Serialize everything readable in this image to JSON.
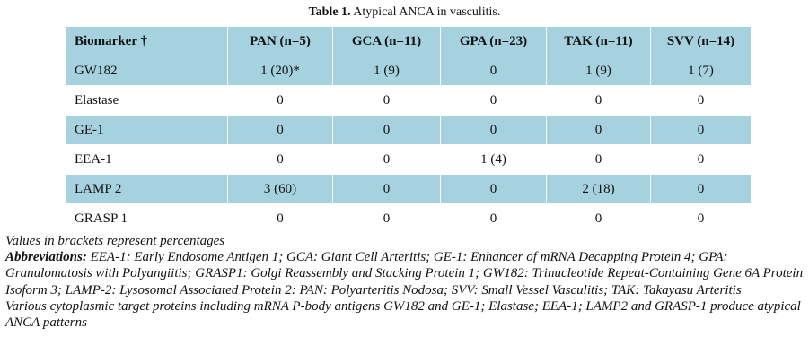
{
  "caption": {
    "label": "Table 1.",
    "text": " Atypical ANCA in vasculitis."
  },
  "table": {
    "headers": [
      "Biomarker †",
      "PAN (n=5)",
      "GCA (n=11)",
      "GPA (n=23)",
      "TAK (n=11)",
      "SVV (n=14)"
    ],
    "rows": [
      [
        "GW182",
        "1 (20)*",
        "1 (9)",
        "0",
        "1 (9)",
        "1 (7)"
      ],
      [
        "Elastase",
        "0",
        "0",
        "0",
        "0",
        "0"
      ],
      [
        "GE-1",
        "0",
        "0",
        "0",
        "0",
        "0"
      ],
      [
        "EEA-1",
        "0",
        "0",
        "1 (4)",
        "0",
        "0"
      ],
      [
        "LAMP 2",
        "3 (60)",
        "0",
        "0",
        "2 (18)",
        "0"
      ],
      [
        "GRASP 1",
        "0",
        "0",
        "0",
        "0",
        "0"
      ]
    ]
  },
  "colors": {
    "band": "#a6d2e0",
    "plain": "#ffffff"
  },
  "notes": {
    "brackets": "Values in brackets represent percentages",
    "abbrev_label": "Abbreviations:",
    "abbrev_text": " EEA-1: Early Endosome Antigen 1; GCA: Giant Cell Arteritis; GE-1: Enhancer of mRNA Decapping Protein 4; GPA: Granulomatosis with Polyangiitis; GRASP1: Golgi Reassembly and Stacking Protein 1; GW182: Trinucleotide Repeat-Containing Gene 6A Protein Isoform 3; LAMP-2: Lysosomal Associated Protein 2: PAN: Polyarteritis Nodosa; SVV: Small Vessel Vasculitis; TAK: Takayasu Arteritis",
    "various": "Various cytoplasmic target proteins including mRNA P-body antigens GW182 and GE-1; Elastase; EEA-1; LAMP2 and GRASP-1 produce atypical ANCA patterns"
  }
}
